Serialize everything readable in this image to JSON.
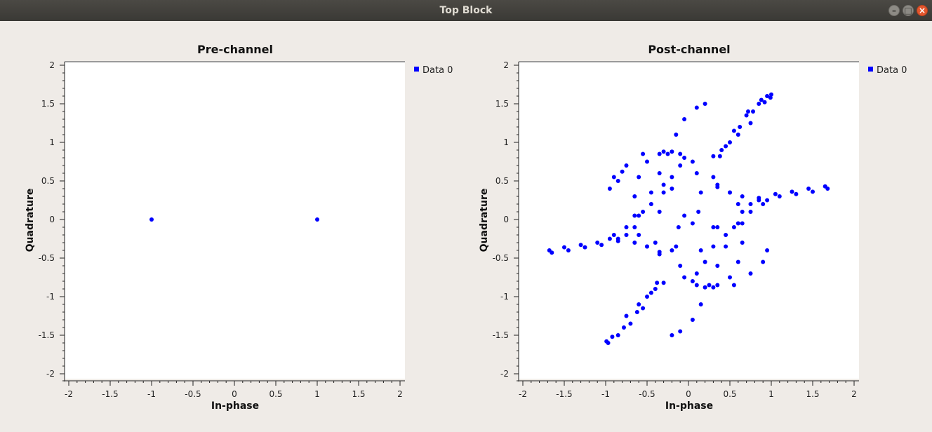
{
  "window": {
    "title": "Top Block"
  },
  "chart_data": [
    {
      "type": "scatter",
      "title": "Pre-channel",
      "xlabel": "In-phase",
      "ylabel": "Quadrature",
      "xlim": [
        -2,
        2
      ],
      "ylim": [
        -2,
        2
      ],
      "xticks": [
        "-2",
        "-1.5",
        "-1",
        "-0.5",
        "0",
        "0.5",
        "1",
        "1.5",
        "2"
      ],
      "yticks": [
        "2",
        "1.5",
        "1",
        "0.5",
        "0",
        "-0.5",
        "-1",
        "-1.5",
        "-2"
      ],
      "legend_placement": "right",
      "grid": false,
      "series": [
        {
          "name": "Data 0",
          "color": "#0000ff",
          "points": [
            [
              -1,
              0
            ],
            [
              1,
              0
            ]
          ]
        }
      ]
    },
    {
      "type": "scatter",
      "title": "Post-channel",
      "xlabel": "In-phase",
      "ylabel": "Quadrature",
      "xlim": [
        -2,
        2
      ],
      "ylim": [
        -2,
        2
      ],
      "xticks": [
        "-2",
        "-1.5",
        "-1",
        "-0.5",
        "0",
        "0.5",
        "1",
        "1.5",
        "2"
      ],
      "yticks": [
        "2",
        "1.5",
        "1",
        "0.5",
        "0",
        "-0.5",
        "-1",
        "-1.5",
        "-2"
      ],
      "legend_placement": "right",
      "grid": false,
      "series": [
        {
          "name": "Data 0",
          "color": "#0000ff",
          "points": [
            [
              -0.97,
              -1.6
            ],
            [
              -0.85,
              -1.5
            ],
            [
              -0.7,
              -1.35
            ],
            [
              -0.55,
              -1.15
            ],
            [
              -0.45,
              -0.95
            ],
            [
              -0.38,
              -0.82
            ],
            [
              -0.62,
              -1.2
            ],
            [
              -0.78,
              -1.4
            ],
            [
              -0.92,
              -1.52
            ],
            [
              -0.99,
              -1.58
            ],
            [
              0.95,
              1.6
            ],
            [
              0.85,
              1.5
            ],
            [
              0.7,
              1.35
            ],
            [
              0.55,
              1.15
            ],
            [
              0.45,
              0.95
            ],
            [
              0.38,
              0.82
            ],
            [
              0.62,
              1.2
            ],
            [
              0.78,
              1.4
            ],
            [
              0.92,
              1.52
            ],
            [
              0.99,
              1.58
            ],
            [
              1.0,
              1.62
            ],
            [
              0.88,
              1.55
            ],
            [
              0.72,
              1.4
            ],
            [
              0.2,
              1.5
            ],
            [
              0.1,
              1.45
            ],
            [
              -0.05,
              1.3
            ],
            [
              -0.15,
              1.1
            ],
            [
              -0.25,
              0.85
            ],
            [
              -0.35,
              0.6
            ],
            [
              -0.45,
              0.35
            ],
            [
              -0.55,
              0.1
            ],
            [
              -0.65,
              -0.1
            ],
            [
              -0.75,
              -0.2
            ],
            [
              -0.85,
              -0.25
            ],
            [
              -0.95,
              -0.25
            ],
            [
              -1.1,
              -0.3
            ],
            [
              -1.3,
              -0.33
            ],
            [
              -1.5,
              -0.36
            ],
            [
              -1.68,
              -0.4
            ],
            [
              -1.65,
              -0.43
            ],
            [
              -1.45,
              -0.4
            ],
            [
              -1.25,
              -0.36
            ],
            [
              -1.05,
              -0.33
            ],
            [
              -0.85,
              -0.28
            ],
            [
              -0.65,
              -0.3
            ],
            [
              -0.5,
              -0.35
            ],
            [
              -0.35,
              -0.45
            ],
            [
              -0.2,
              -1.5
            ],
            [
              -0.1,
              -1.45
            ],
            [
              0.05,
              -1.3
            ],
            [
              0.15,
              -1.1
            ],
            [
              0.25,
              -0.85
            ],
            [
              0.35,
              -0.6
            ],
            [
              0.45,
              -0.35
            ],
            [
              0.55,
              -0.1
            ],
            [
              0.65,
              0.1
            ],
            [
              0.75,
              0.2
            ],
            [
              0.85,
              0.25
            ],
            [
              0.95,
              0.25
            ],
            [
              1.1,
              0.3
            ],
            [
              1.3,
              0.33
            ],
            [
              1.5,
              0.36
            ],
            [
              1.68,
              0.4
            ],
            [
              1.65,
              0.43
            ],
            [
              1.45,
              0.4
            ],
            [
              1.25,
              0.36
            ],
            [
              1.05,
              0.33
            ],
            [
              0.85,
              0.28
            ],
            [
              0.65,
              0.3
            ],
            [
              0.5,
              0.35
            ],
            [
              0.35,
              0.45
            ],
            [
              -0.2,
              0.88
            ],
            [
              -0.35,
              0.85
            ],
            [
              -0.5,
              0.75
            ],
            [
              -0.6,
              0.55
            ],
            [
              -0.65,
              0.3
            ],
            [
              -0.65,
              0.05
            ],
            [
              -0.6,
              -0.2
            ],
            [
              -0.5,
              -0.35
            ],
            [
              -0.35,
              -0.42
            ],
            [
              -0.05,
              0.8
            ],
            [
              0.1,
              0.6
            ],
            [
              0.15,
              0.35
            ],
            [
              0.12,
              0.1
            ],
            [
              0.05,
              -0.05
            ],
            [
              0.2,
              -0.88
            ],
            [
              0.35,
              -0.85
            ],
            [
              0.5,
              -0.75
            ],
            [
              0.6,
              -0.55
            ],
            [
              0.65,
              -0.3
            ],
            [
              0.65,
              -0.05
            ],
            [
              0.6,
              0.2
            ],
            [
              0.5,
              0.35
            ],
            [
              0.35,
              0.42
            ],
            [
              0.05,
              -0.8
            ],
            [
              -0.1,
              -0.6
            ],
            [
              -0.15,
              -0.35
            ],
            [
              -0.12,
              -0.1
            ],
            [
              -0.05,
              0.05
            ],
            [
              -0.95,
              0.4
            ],
            [
              -0.9,
              0.55
            ],
            [
              -0.75,
              0.7
            ],
            [
              -0.55,
              0.85
            ],
            [
              -0.3,
              0.88
            ],
            [
              -0.1,
              0.85
            ],
            [
              0.05,
              0.75
            ],
            [
              0.95,
              -0.4
            ],
            [
              0.9,
              -0.55
            ],
            [
              0.75,
              -0.7
            ],
            [
              0.55,
              -0.85
            ],
            [
              0.3,
              -0.88
            ],
            [
              0.1,
              -0.85
            ],
            [
              -0.05,
              -0.75
            ],
            [
              -0.9,
              -0.2
            ],
            [
              -0.75,
              -0.1
            ],
            [
              -0.6,
              0.05
            ],
            [
              -0.45,
              0.2
            ],
            [
              -0.3,
              0.35
            ],
            [
              -0.2,
              0.55
            ],
            [
              0.9,
              0.2
            ],
            [
              0.75,
              0.1
            ],
            [
              0.6,
              -0.05
            ],
            [
              0.45,
              -0.2
            ],
            [
              0.3,
              -0.35
            ],
            [
              0.2,
              -0.55
            ],
            [
              -0.75,
              -1.25
            ],
            [
              -0.6,
              -1.1
            ],
            [
              -0.5,
              -1.0
            ],
            [
              -0.4,
              -0.9
            ],
            [
              -0.3,
              -0.82
            ],
            [
              0.75,
              1.25
            ],
            [
              0.6,
              1.1
            ],
            [
              0.5,
              1.0
            ],
            [
              0.4,
              0.9
            ],
            [
              0.3,
              0.82
            ],
            [
              -0.8,
              0.62
            ],
            [
              -0.85,
              0.5
            ],
            [
              -0.3,
              0.45
            ],
            [
              -0.35,
              0.1
            ],
            [
              0.3,
              0.55
            ],
            [
              0.3,
              -0.1
            ],
            [
              -0.2,
              0.4
            ],
            [
              0.15,
              -0.4
            ],
            [
              0.35,
              -0.1
            ],
            [
              -0.4,
              -0.3
            ],
            [
              -0.2,
              -0.4
            ],
            [
              0.1,
              -0.7
            ],
            [
              -0.1,
              0.7
            ]
          ]
        }
      ]
    }
  ]
}
